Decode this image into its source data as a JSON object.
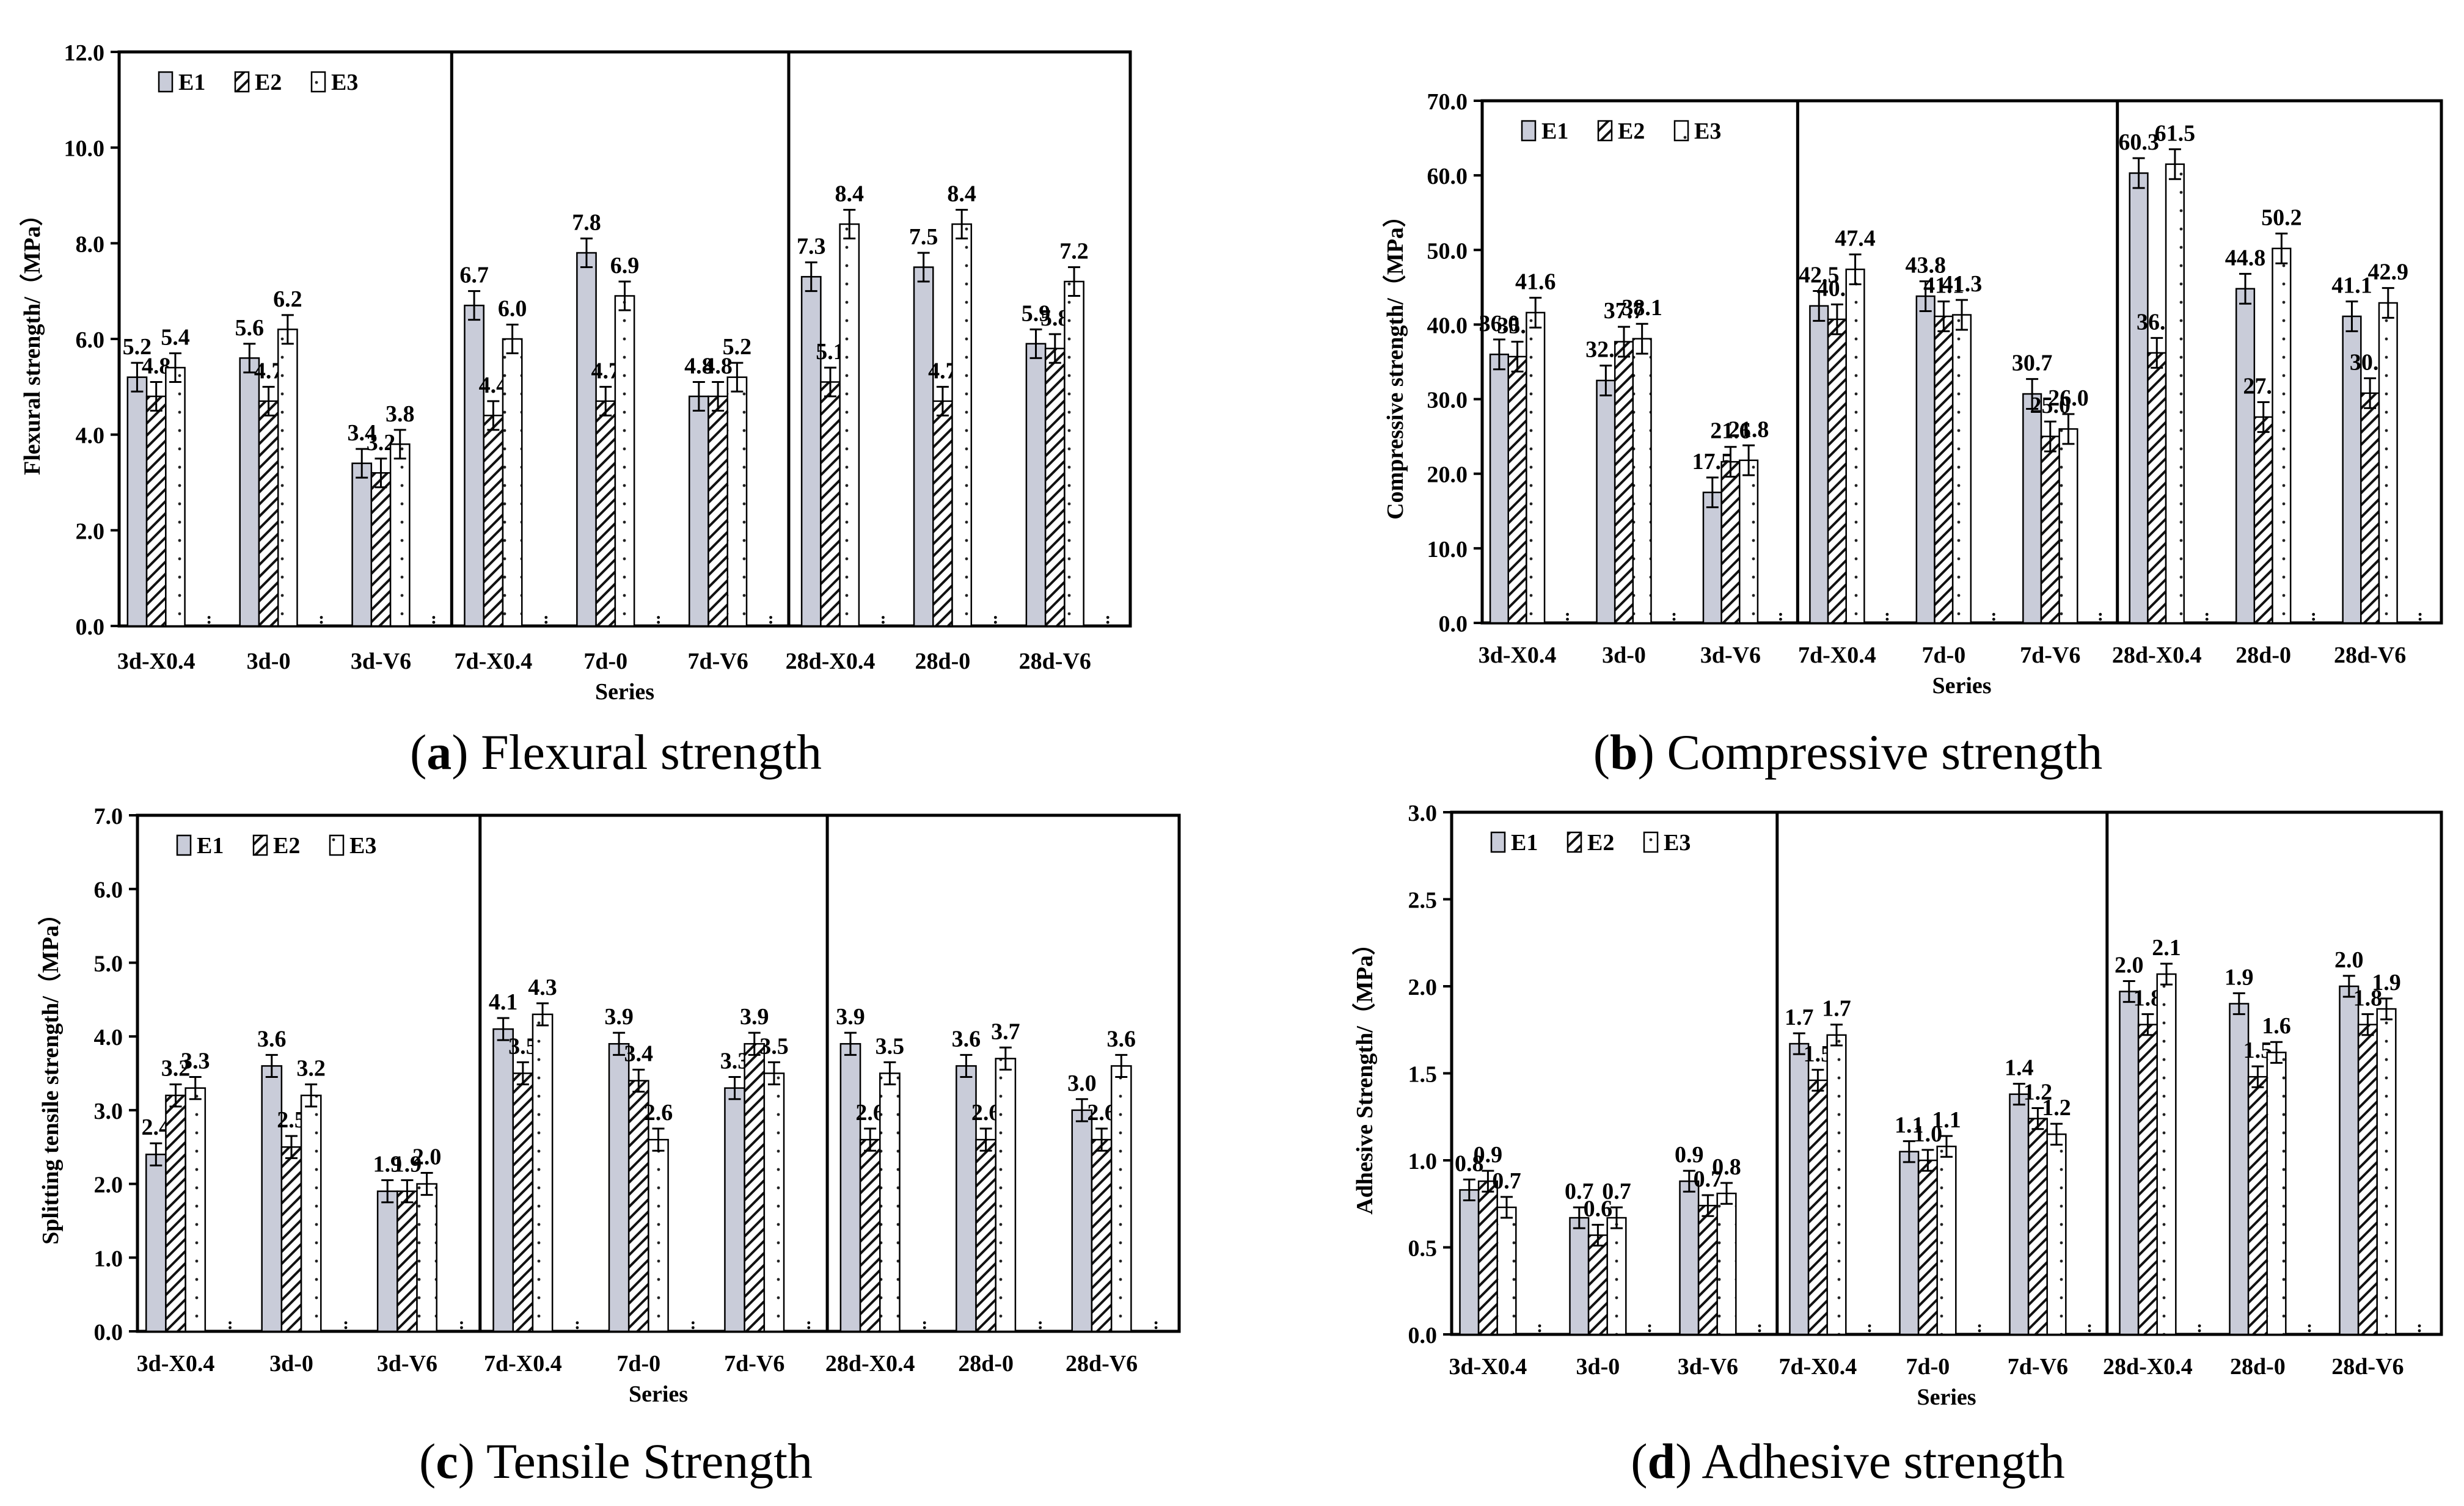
{
  "series_names": [
    "E1",
    "E2",
    "E3"
  ],
  "colors": {
    "E1": "#c9ccd9",
    "E2": "#1a1a1a",
    "E3": "#ffffff",
    "axis": "#000000"
  },
  "axis_xlabel": "Series",
  "categories": [
    "3d-X0.4",
    "3d-0",
    "3d-V6",
    "7d-X0.4",
    "7d-0",
    "7d-V6",
    "28d-X0.4",
    "28d-0",
    "28d-V6"
  ],
  "captions": [
    {
      "letter": "a",
      "text": "Flexural strength"
    },
    {
      "letter": "b",
      "text": "Compressive strength"
    },
    {
      "letter": "c",
      "text": "Tensile Strength"
    },
    {
      "letter": "d",
      "text": "Adhesive strength"
    }
  ],
  "chart_data": [
    {
      "type": "bar",
      "ylabel": "Flexural strength/（MPa）",
      "xlabel": "Series",
      "ylim": [
        0,
        12
      ],
      "yticks": [
        "0.0",
        "2.0",
        "4.0",
        "6.0",
        "8.0",
        "10.0",
        "12.0"
      ],
      "categories": [
        "3d-X0.4",
        "3d-0",
        "3d-V6",
        "7d-X0.4",
        "7d-0",
        "7d-V6",
        "28d-X0.4",
        "28d-0",
        "28d-V6"
      ],
      "series": [
        {
          "name": "E1",
          "values": [
            5.2,
            5.6,
            3.4,
            6.7,
            7.8,
            4.8,
            7.3,
            7.5,
            5.9
          ],
          "labels": [
            "5.2",
            "5.6",
            "3.4",
            "6.7",
            "7.8",
            "4.8",
            "7.3",
            "7.5",
            "5.9"
          ]
        },
        {
          "name": "E2",
          "values": [
            4.8,
            4.7,
            3.2,
            4.4,
            4.7,
            4.8,
            5.1,
            4.7,
            5.8
          ],
          "labels": [
            "4.8",
            "4.7",
            "3.2",
            "4.4",
            "4.7",
            "4.8",
            "5.1",
            "4.7",
            "5.8"
          ]
        },
        {
          "name": "E3",
          "values": [
            5.4,
            6.2,
            3.8,
            6.0,
            6.9,
            5.2,
            8.4,
            8.4,
            7.2
          ],
          "labels": [
            "5.4",
            "6.2",
            "3.8",
            "6.0",
            "6.9",
            "5.2",
            "8.4",
            "8.4",
            "7.2"
          ]
        }
      ],
      "error_bars": 0.3,
      "legend": "top-left",
      "grid": false
    },
    {
      "type": "bar",
      "ylabel": "Compressive strength/（MPa）",
      "xlabel": "Series",
      "ylim": [
        0,
        70
      ],
      "yticks": [
        "0.0",
        "10.0",
        "20.0",
        "30.0",
        "40.0",
        "50.0",
        "60.0",
        "70.0"
      ],
      "categories": [
        "3d-X0.4",
        "3d-0",
        "3d-V6",
        "7d-X0.4",
        "7d-0",
        "7d-V6",
        "28d-X0.4",
        "28d-0",
        "28d-V6"
      ],
      "series": [
        {
          "name": "E1",
          "values": [
            36.0,
            32.5,
            17.5,
            42.5,
            43.8,
            30.7,
            60.3,
            44.8,
            41.1
          ],
          "labels": [
            "36.0",
            "32.5",
            "17.5",
            "42.5",
            "43.8",
            "30.7",
            "60.3",
            "44.8",
            "41.1"
          ]
        },
        {
          "name": "E2",
          "values": [
            35.7,
            37.7,
            21.6,
            40.7,
            41.1,
            25.0,
            36.2,
            27.6,
            30.8
          ],
          "labels": [
            "35.7",
            "37.7",
            "21.6",
            "40.7",
            "41.1",
            "25.0",
            "36.2",
            "27.6",
            "30.8"
          ]
        },
        {
          "name": "E3",
          "values": [
            41.6,
            38.1,
            21.8,
            47.4,
            41.3,
            26.0,
            61.5,
            50.2,
            42.9
          ],
          "labels": [
            "41.6",
            "38.1",
            "21.8",
            "47.4",
            "41.3",
            "26.0",
            "61.5",
            "50.2",
            "42.9"
          ]
        }
      ],
      "error_bars": 2.0,
      "legend": "top-left",
      "grid": false
    },
    {
      "type": "bar",
      "ylabel": "Splitting tensile strength/（MPa）",
      "xlabel": "Series",
      "ylim": [
        0,
        7
      ],
      "yticks": [
        "0.0",
        "1.0",
        "2.0",
        "3.0",
        "4.0",
        "5.0",
        "6.0",
        "7.0"
      ],
      "categories": [
        "3d-X0.4",
        "3d-0",
        "3d-V6",
        "7d-X0.4",
        "7d-0",
        "7d-V6",
        "28d-X0.4",
        "28d-0",
        "28d-V6"
      ],
      "series": [
        {
          "name": "E1",
          "values": [
            2.4,
            3.6,
            1.9,
            4.1,
            3.9,
            3.3,
            3.9,
            3.6,
            3.0
          ],
          "labels": [
            "2.4",
            "3.6",
            "1.9",
            "4.1",
            "3.9",
            "3.3",
            "3.9",
            "3.6",
            "3.0"
          ]
        },
        {
          "name": "E2",
          "values": [
            3.2,
            2.5,
            1.9,
            3.5,
            3.4,
            3.9,
            2.6,
            2.6,
            2.6
          ],
          "labels": [
            "3.2",
            "2.5",
            "1.9",
            "3.5",
            "3.4",
            "3.9",
            "2.6",
            "2.6",
            "2.6"
          ]
        },
        {
          "name": "E3",
          "values": [
            3.3,
            3.2,
            2.0,
            4.3,
            2.6,
            3.5,
            3.5,
            3.7,
            3.6
          ],
          "labels": [
            "3.3",
            "3.2",
            "2.0",
            "4.3",
            "2.6",
            "3.5",
            "3.5",
            "3.7",
            "3.6"
          ]
        }
      ],
      "error_bars": 0.15,
      "legend": "top-left",
      "grid": false
    },
    {
      "type": "bar",
      "ylabel": "Adhesive Strength/（MPa）",
      "xlabel": "Series",
      "ylim": [
        0,
        3
      ],
      "yticks": [
        "0.0",
        "0.5",
        "1.0",
        "1.5",
        "2.0",
        "2.5",
        "3.0"
      ],
      "categories": [
        "3d-X0.4",
        "3d-0",
        "3d-V6",
        "7d-X0.4",
        "7d-0",
        "7d-V6",
        "28d-X0.4",
        "28d-0",
        "28d-V6"
      ],
      "series": [
        {
          "name": "E1",
          "values": [
            0.83,
            0.67,
            0.88,
            1.67,
            1.05,
            1.38,
            1.97,
            1.9,
            2.0
          ],
          "labels": [
            "0.8",
            "0.7",
            "0.9",
            "1.7",
            "1.1",
            "1.4",
            "2.0",
            "1.9",
            "2.0"
          ]
        },
        {
          "name": "E2",
          "values": [
            0.88,
            0.57,
            0.74,
            1.46,
            1.0,
            1.24,
            1.78,
            1.48,
            1.78
          ],
          "labels": [
            "0.9",
            "0.6",
            "0.7",
            "1.5",
            "1.0",
            "1.2",
            "1.8",
            "1.5",
            "1.8"
          ]
        },
        {
          "name": "E3",
          "values": [
            0.73,
            0.67,
            0.81,
            1.72,
            1.08,
            1.15,
            2.07,
            1.62,
            1.87
          ],
          "labels": [
            "0.7",
            "0.7",
            "0.8",
            "1.7",
            "1.1",
            "1.2",
            "2.1",
            "1.6",
            "1.9"
          ]
        }
      ],
      "error_bars": 0.06,
      "legend": "top-left",
      "grid": false
    }
  ]
}
